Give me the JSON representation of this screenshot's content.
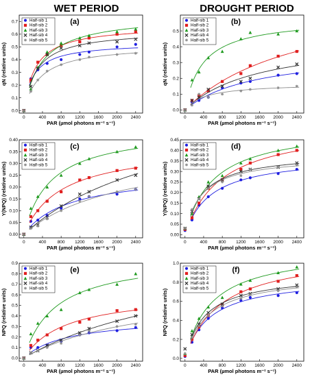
{
  "column_titles": [
    "WET PERIOD",
    "DROUGHT PERIOD"
  ],
  "legend_entries": [
    "Half-sib 1",
    "Half-sib 2",
    "Half-sib 3",
    "Half-sib 4",
    "Half-sib 5"
  ],
  "series_colors": [
    "#1f1fe0",
    "#e01f1f",
    "#1f9a1f",
    "#333333",
    "#8c8c8c"
  ],
  "series_markers": [
    "circle",
    "square",
    "triangle",
    "x",
    "star"
  ],
  "chart_data": [
    {
      "type": "scatter",
      "panel": "(a)",
      "xlabel": "PAR (µmol photons m⁻² s⁻¹)",
      "ylabel": "qN (relative units)",
      "xlim": [
        -100,
        2550
      ],
      "ylim": [
        -0.02,
        0.75
      ],
      "xticks": [
        0,
        400,
        800,
        1200,
        1600,
        2000,
        2400
      ],
      "yticks": [
        0.0,
        0.1,
        0.2,
        0.3,
        0.4,
        0.5,
        0.6,
        0.7
      ],
      "x": [
        0,
        150,
        300,
        500,
        800,
        1200,
        1400,
        2000,
        2400
      ],
      "series": [
        {
          "name": "Half-sib 1",
          "values": [
            0,
            0.25,
            0.32,
            0.37,
            0.4,
            0.44,
            0.46,
            0.5,
            0.52
          ]
        },
        {
          "name": "Half-sib 2",
          "values": [
            0,
            0.24,
            0.38,
            0.44,
            0.51,
            0.54,
            0.57,
            0.6,
            0.62
          ]
        },
        {
          "name": "Half-sib 3",
          "values": [
            0,
            0.17,
            0.34,
            0.46,
            0.53,
            0.57,
            0.59,
            0.62,
            0.64
          ]
        },
        {
          "name": "Half-sib 4",
          "values": [
            0,
            0.19,
            0.33,
            0.44,
            0.49,
            0.51,
            0.53,
            0.54,
            0.56
          ]
        },
        {
          "name": "Half-sib 5",
          "values": [
            0,
            0.15,
            0.24,
            0.31,
            0.36,
            0.4,
            0.42,
            0.44,
            0.45
          ]
        }
      ]
    },
    {
      "type": "scatter",
      "panel": "(b)",
      "xlabel": "PAR (µmol photons m⁻² s⁻¹)",
      "ylabel": "qN (relative units)",
      "xlim": [
        -100,
        2550
      ],
      "ylim": [
        -0.02,
        0.6
      ],
      "xticks": [
        0,
        400,
        800,
        1200,
        1600,
        2000,
        2400
      ],
      "yticks": [
        0.0,
        0.1,
        0.2,
        0.3,
        0.4,
        0.5
      ],
      "x": [
        0,
        150,
        300,
        500,
        800,
        1200,
        1400,
        2000,
        2400
      ],
      "series": [
        {
          "name": "Half-sib 1",
          "values": [
            0,
            0.05,
            0.06,
            0.08,
            0.14,
            0.17,
            0.18,
            0.22,
            0.23
          ]
        },
        {
          "name": "Half-sib 2",
          "values": [
            0,
            0.06,
            0.09,
            0.12,
            0.18,
            0.23,
            0.28,
            0.34,
            0.37
          ]
        },
        {
          "name": "Half-sib 3",
          "values": [
            0,
            0.19,
            0.24,
            0.33,
            0.37,
            0.45,
            0.49,
            0.48,
            0.5
          ]
        },
        {
          "name": "Half-sib 4",
          "values": [
            0,
            0.06,
            0.08,
            0.13,
            0.15,
            0.18,
            0.2,
            0.27,
            0.29
          ]
        },
        {
          "name": "Half-sib 5",
          "values": [
            0,
            0.03,
            0.1,
            0.08,
            0.1,
            0.12,
            0.13,
            0.14,
            0.15
          ]
        }
      ]
    },
    {
      "type": "scatter",
      "panel": "(c)",
      "xlabel": "PAR (µmol photons m⁻² s⁻¹)",
      "ylabel": "Y(NPQ) (relative units)",
      "xlim": [
        -100,
        2550
      ],
      "ylim": [
        -0.015,
        0.4
      ],
      "xticks": [
        0,
        400,
        800,
        1200,
        1600,
        2000,
        2400
      ],
      "yticks": [
        0.0,
        0.05,
        0.1,
        0.15,
        0.2,
        0.25,
        0.3,
        0.35,
        0.4
      ],
      "x": [
        0,
        150,
        300,
        500,
        800,
        1200,
        1400,
        2000,
        2400
      ],
      "series": [
        {
          "name": "Half-sib 1",
          "values": [
            0,
            0.055,
            0.06,
            0.08,
            0.11,
            0.15,
            0.16,
            0.17,
            0.19
          ]
        },
        {
          "name": "Half-sib 2",
          "values": [
            0,
            0.075,
            0.1,
            0.14,
            0.18,
            0.23,
            0.24,
            0.27,
            0.28
          ]
        },
        {
          "name": "Half-sib 3",
          "values": [
            0,
            0.11,
            0.16,
            0.2,
            0.25,
            0.3,
            0.32,
            0.35,
            0.37
          ]
        },
        {
          "name": "Half-sib 4",
          "values": [
            0,
            0.03,
            0.04,
            0.07,
            0.12,
            0.17,
            0.18,
            0.23,
            0.25
          ]
        },
        {
          "name": "Half-sib 5",
          "values": [
            0,
            0.025,
            0.035,
            0.065,
            0.1,
            0.14,
            0.16,
            0.18,
            0.19
          ]
        }
      ]
    },
    {
      "type": "scatter",
      "panel": "(d)",
      "xlabel": "PAR (µmol photons m⁻² s⁻¹)",
      "ylabel": "Y(NPQ) (relative units)",
      "xlim": [
        -100,
        2550
      ],
      "ylim": [
        -0.015,
        0.45
      ],
      "xticks": [
        0,
        400,
        800,
        1200,
        1600,
        2000,
        2400
      ],
      "yticks": [
        0.0,
        0.05,
        0.1,
        0.15,
        0.2,
        0.25,
        0.3,
        0.35,
        0.4,
        0.45
      ],
      "x": [
        0,
        150,
        300,
        500,
        800,
        1200,
        1400,
        2000,
        2400
      ],
      "series": [
        {
          "name": "Half-sib 1",
          "values": [
            0.02,
            0.07,
            0.14,
            0.18,
            0.22,
            0.26,
            0.27,
            0.29,
            0.31
          ]
        },
        {
          "name": "Half-sib 2",
          "values": [
            0.025,
            0.08,
            0.15,
            0.22,
            0.26,
            0.31,
            0.34,
            0.38,
            0.4
          ]
        },
        {
          "name": "Half-sib 3",
          "values": [
            0.03,
            0.1,
            0.18,
            0.25,
            0.28,
            0.34,
            0.36,
            0.4,
            0.42
          ]
        },
        {
          "name": "Half-sib 4",
          "values": [
            0.03,
            0.11,
            0.17,
            0.23,
            0.26,
            0.3,
            0.31,
            0.32,
            0.34
          ]
        },
        {
          "name": "Half-sib 5",
          "values": [
            0.03,
            0.12,
            0.17,
            0.22,
            0.25,
            0.28,
            0.31,
            0.32,
            0.33
          ]
        }
      ]
    },
    {
      "type": "scatter",
      "panel": "(e)",
      "xlabel": "PAR (µmol photons m⁻² s⁻¹)",
      "ylabel": "NPQ (relative units)",
      "xlim": [
        -100,
        2550
      ],
      "ylim": [
        -0.03,
        0.9
      ],
      "xticks": [
        0,
        400,
        800,
        1200,
        1600,
        2000,
        2400
      ],
      "yticks": [
        0.0,
        0.1,
        0.2,
        0.3,
        0.4,
        0.5,
        0.6,
        0.7,
        0.8,
        0.9
      ],
      "x": [
        0,
        150,
        300,
        500,
        800,
        1200,
        1400,
        2000,
        2400
      ],
      "series": [
        {
          "name": "Half-sib 1",
          "values": [
            0,
            0.1,
            0.1,
            0.12,
            0.16,
            0.22,
            0.24,
            0.26,
            0.29
          ]
        },
        {
          "name": "Half-sib 2",
          "values": [
            0,
            0.12,
            0.17,
            0.22,
            0.28,
            0.34,
            0.37,
            0.45,
            0.46
          ]
        },
        {
          "name": "Half-sib 3",
          "values": [
            0,
            0.23,
            0.33,
            0.4,
            0.46,
            0.62,
            0.65,
            0.7,
            0.8
          ]
        },
        {
          "name": "Half-sib 4",
          "values": [
            0,
            0.05,
            0.07,
            0.12,
            0.17,
            0.24,
            0.28,
            0.35,
            0.4
          ]
        },
        {
          "name": "Half-sib 5",
          "values": [
            0,
            0.05,
            0.07,
            0.1,
            0.14,
            0.22,
            0.26,
            0.3,
            0.32
          ]
        }
      ]
    },
    {
      "type": "scatter",
      "panel": "(f)",
      "xlabel": "PAR (µmol photons m⁻² s⁻¹)",
      "ylabel": "NPQ (relative units)",
      "xlim": [
        -100,
        2550
      ],
      "ylim": [
        -0.03,
        1.0
      ],
      "xticks": [
        0,
        400,
        800,
        1200,
        1600,
        2000,
        2400
      ],
      "yticks": [
        0.0,
        0.2,
        0.4,
        0.6,
        0.8,
        1.0
      ],
      "x": [
        0,
        150,
        300,
        500,
        800,
        1200,
        1400,
        2000,
        2400
      ],
      "series": [
        {
          "name": "Half-sib 1",
          "values": [
            0.02,
            0.17,
            0.3,
            0.42,
            0.53,
            0.61,
            0.64,
            0.66,
            0.69
          ]
        },
        {
          "name": "Half-sib 2",
          "values": [
            0.03,
            0.2,
            0.33,
            0.45,
            0.56,
            0.7,
            0.73,
            0.81,
            0.87
          ]
        },
        {
          "name": "Half-sib 3",
          "values": [
            0.05,
            0.29,
            0.42,
            0.54,
            0.64,
            0.78,
            0.82,
            0.9,
            0.96
          ]
        },
        {
          "name": "Half-sib 4",
          "values": [
            0.1,
            0.25,
            0.36,
            0.48,
            0.57,
            0.66,
            0.68,
            0.73,
            0.77
          ]
        },
        {
          "name": "Half-sib 5",
          "values": [
            0.05,
            0.22,
            0.34,
            0.45,
            0.55,
            0.63,
            0.67,
            0.71,
            0.75
          ]
        }
      ]
    }
  ]
}
